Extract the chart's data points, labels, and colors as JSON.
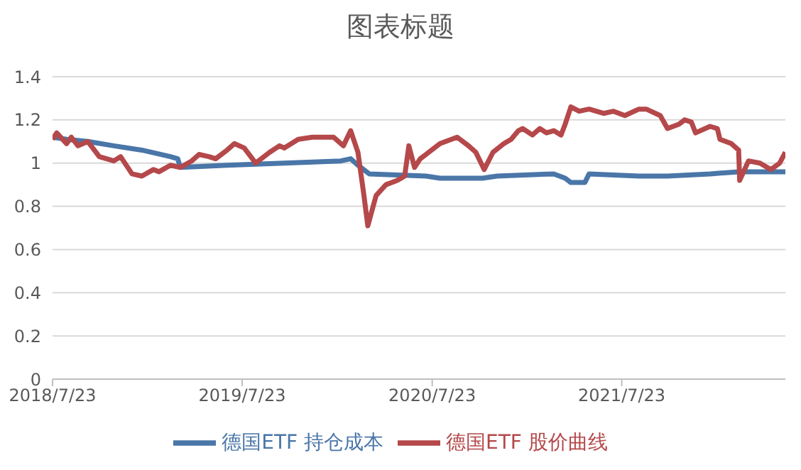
{
  "chart_data": {
    "type": "line",
    "title": "图表标题",
    "xlim": [
      "2018-07-23",
      "2022-06-03"
    ],
    "xticks": [
      {
        "value": "2018-07-23",
        "label": "2018/7/23"
      },
      {
        "value": "2019-07-23",
        "label": "2019/7/23"
      },
      {
        "value": "2020-07-23",
        "label": "2020/7/23"
      },
      {
        "value": "2021-07-23",
        "label": "2021/7/23"
      }
    ],
    "ylim": [
      0,
      1.4
    ],
    "yticks": [
      0,
      0.2,
      0.4,
      0.6,
      0.8,
      1,
      1.2,
      1.4
    ],
    "grid": "y",
    "legend": "bottom",
    "marker": "none",
    "line_style": "solid",
    "series": [
      {
        "name": "德国ETF 持仓成本",
        "color": "#4a76a8",
        "x": [
          "2018-07-23",
          "2018-08-19",
          "2018-09-29",
          "2018-11-18",
          "2019-01-11",
          "2019-03-07",
          "2019-03-21",
          "2019-03-26",
          "2019-06-24",
          "2019-10-12",
          "2020-01-29",
          "2020-02-17",
          "2020-03-02",
          "2020-03-24",
          "2020-07-11",
          "2020-08-07",
          "2020-10-28",
          "2020-11-25",
          "2021-03-14",
          "2021-04-05",
          "2021-04-16",
          "2021-05-13",
          "2021-05-21",
          "2021-08-25",
          "2021-10-19",
          "2022-01-09",
          "2022-03-05",
          "2022-06-03"
        ],
        "values": [
          1.12,
          1.11,
          1.1,
          1.08,
          1.06,
          1.03,
          1.02,
          0.98,
          0.99,
          1.0,
          1.01,
          1.02,
          0.99,
          0.95,
          0.94,
          0.93,
          0.93,
          0.94,
          0.95,
          0.93,
          0.91,
          0.91,
          0.95,
          0.94,
          0.94,
          0.95,
          0.96,
          0.96
        ]
      },
      {
        "name": "德国ETF 股价曲线",
        "color": "#b5484a",
        "x": [
          "2018-07-23",
          "2018-07-31",
          "2018-08-19",
          "2018-08-28",
          "2018-09-10",
          "2018-09-29",
          "2018-10-21",
          "2018-11-18",
          "2018-12-01",
          "2018-12-23",
          "2019-01-11",
          "2019-02-02",
          "2019-02-13",
          "2019-03-07",
          "2019-03-26",
          "2019-04-17",
          "2019-05-01",
          "2019-05-20",
          "2019-06-02",
          "2019-06-24",
          "2019-07-08",
          "2019-07-27",
          "2019-08-18",
          "2019-09-14",
          "2019-10-03",
          "2019-10-12",
          "2019-11-08",
          "2019-12-05",
          "2020-01-15",
          "2020-02-03",
          "2020-02-17",
          "2020-03-02",
          "2020-03-13",
          "2020-03-21",
          "2020-04-06",
          "2020-04-25",
          "2020-05-17",
          "2020-05-31",
          "2020-06-08",
          "2020-06-19",
          "2020-06-30",
          "2020-07-11",
          "2020-08-07",
          "2020-09-09",
          "2020-10-01",
          "2020-10-15",
          "2020-10-31",
          "2020-11-17",
          "2020-12-08",
          "2020-12-22",
          "2021-01-05",
          "2021-01-13",
          "2021-02-01",
          "2021-02-15",
          "2021-02-28",
          "2021-03-14",
          "2021-03-28",
          "2021-04-05",
          "2021-04-16",
          "2021-05-02",
          "2021-05-21",
          "2021-06-18",
          "2021-07-07",
          "2021-07-29",
          "2021-08-25",
          "2021-09-08",
          "2021-10-05",
          "2021-10-19",
          "2021-11-10",
          "2021-11-21",
          "2021-12-04",
          "2021-12-12",
          "2022-01-09",
          "2022-01-23",
          "2022-01-28",
          "2022-02-19",
          "2022-03-05",
          "2022-03-07",
          "2022-03-24",
          "2022-04-15",
          "2022-05-06",
          "2022-05-23",
          "2022-06-03"
        ],
        "values": [
          1.11,
          1.14,
          1.09,
          1.12,
          1.08,
          1.1,
          1.03,
          1.01,
          1.03,
          0.95,
          0.94,
          0.97,
          0.96,
          0.99,
          0.98,
          1.01,
          1.04,
          1.03,
          1.02,
          1.06,
          1.09,
          1.07,
          1.0,
          1.05,
          1.08,
          1.07,
          1.11,
          1.12,
          1.12,
          1.08,
          1.15,
          1.05,
          0.86,
          0.71,
          0.85,
          0.9,
          0.92,
          0.94,
          1.08,
          0.98,
          1.02,
          1.04,
          1.09,
          1.12,
          1.08,
          1.05,
          0.97,
          1.05,
          1.09,
          1.11,
          1.15,
          1.16,
          1.13,
          1.16,
          1.14,
          1.15,
          1.13,
          1.18,
          1.26,
          1.24,
          1.25,
          1.23,
          1.24,
          1.22,
          1.25,
          1.25,
          1.22,
          1.16,
          1.18,
          1.2,
          1.19,
          1.14,
          1.17,
          1.16,
          1.11,
          1.09,
          1.06,
          0.92,
          1.01,
          1.0,
          0.97,
          1.0,
          1.05
        ]
      }
    ]
  }
}
